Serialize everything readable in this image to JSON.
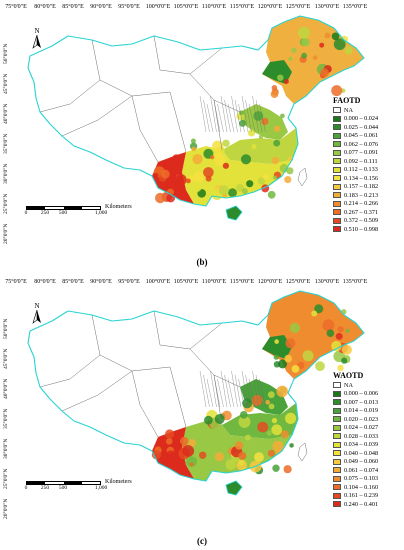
{
  "longitude_labels": [
    "75°0'0\"E",
    "80°0'0\"E",
    "85°0'0\"E",
    "90°0'0\"E",
    "95°0'0\"E",
    "100°0'0\"E",
    "105°0'0\"E",
    "110°0'0\"E",
    "115°0'0\"E",
    "120°0'0\"E",
    "125°0'0\"E",
    "130°0'0\"E",
    "135°0'0\"E"
  ],
  "latitude_labels": [
    "50°0'0\"N",
    "45°0'0\"N",
    "40°0'0\"N",
    "35°0'0\"N",
    "30°0'0\"N",
    "25°0'0\"N",
    "20°0'0\"N"
  ],
  "north_label": "N",
  "scale": {
    "ticks": [
      "0",
      "250",
      "500",
      "1,000"
    ],
    "unit": "Kilometers"
  },
  "colors": {
    "boundary": "#29d3d3",
    "county_lines": "#707070",
    "water": "#ffffff"
  },
  "panels": [
    {
      "caption": "(b)",
      "legend_title": "FAOTD",
      "legend": [
        {
          "label": "NA",
          "color": "#ffffff"
        },
        {
          "label": "0.000 – 0.024",
          "color": "#1a7a1a"
        },
        {
          "label": "0.025 – 0.044",
          "color": "#2c8c2c"
        },
        {
          "label": "0.045 – 0.061",
          "color": "#4aa23a"
        },
        {
          "label": "0.062 – 0.076",
          "color": "#70b840"
        },
        {
          "label": "0.077 – 0.091",
          "color": "#98c844"
        },
        {
          "label": "0.092 – 0.111",
          "color": "#c0d640"
        },
        {
          "label": "0.112 – 0.133",
          "color": "#e2e23a"
        },
        {
          "label": "0.134 – 0.156",
          "color": "#f4e040"
        },
        {
          "label": "0.157 – 0.182",
          "color": "#f8c840"
        },
        {
          "label": "0.183 – 0.213",
          "color": "#f4ac38"
        },
        {
          "label": "0.214 – 0.266",
          "color": "#f08c30"
        },
        {
          "label": "0.267 – 0.371",
          "color": "#ec6c28"
        },
        {
          "label": "0.372 – 0.509",
          "color": "#e44a22"
        },
        {
          "label": "0.510 – 0.998",
          "color": "#dc2a1c"
        }
      ],
      "region_fill": {
        "northeast": "#f0b040",
        "northeast_dark": "#2c8c2c",
        "north_china": "#98c844",
        "east": "#c0d640",
        "south": "#e2e23a",
        "southwest": "#dc2a1c",
        "hainan": "#2c8c2c"
      }
    },
    {
      "caption": "(c)",
      "legend_title": "WAOTD",
      "legend": [
        {
          "label": "NA",
          "color": "#ffffff"
        },
        {
          "label": "0.000 – 0.006",
          "color": "#1a7a1a"
        },
        {
          "label": "0.007 – 0.013",
          "color": "#2c8c2c"
        },
        {
          "label": "0.014 – 0.019",
          "color": "#4aa23a"
        },
        {
          "label": "0.020 – 0.023",
          "color": "#70b840"
        },
        {
          "label": "0.024 – 0.027",
          "color": "#98c844"
        },
        {
          "label": "0.028 – 0.033",
          "color": "#c0d640"
        },
        {
          "label": "0.034 – 0.039",
          "color": "#e2e23a"
        },
        {
          "label": "0.040 – 0.048",
          "color": "#f4e040"
        },
        {
          "label": "0.049 – 0.060",
          "color": "#f8c840"
        },
        {
          "label": "0.061 – 0.074",
          "color": "#f4ac38"
        },
        {
          "label": "0.075 – 0.103",
          "color": "#f08c30"
        },
        {
          "label": "0.104 – 0.160",
          "color": "#ec6c28"
        },
        {
          "label": "0.161 – 0.239",
          "color": "#e44a22"
        },
        {
          "label": "0.240 – 0.401",
          "color": "#dc2a1c"
        }
      ],
      "region_fill": {
        "northeast": "#f08c30",
        "northeast_dark": "#2c8c2c",
        "north_china": "#4aa23a",
        "east": "#70b840",
        "south": "#98c844",
        "southwest": "#dc2a1c",
        "hainan": "#2c8c2c"
      }
    }
  ]
}
